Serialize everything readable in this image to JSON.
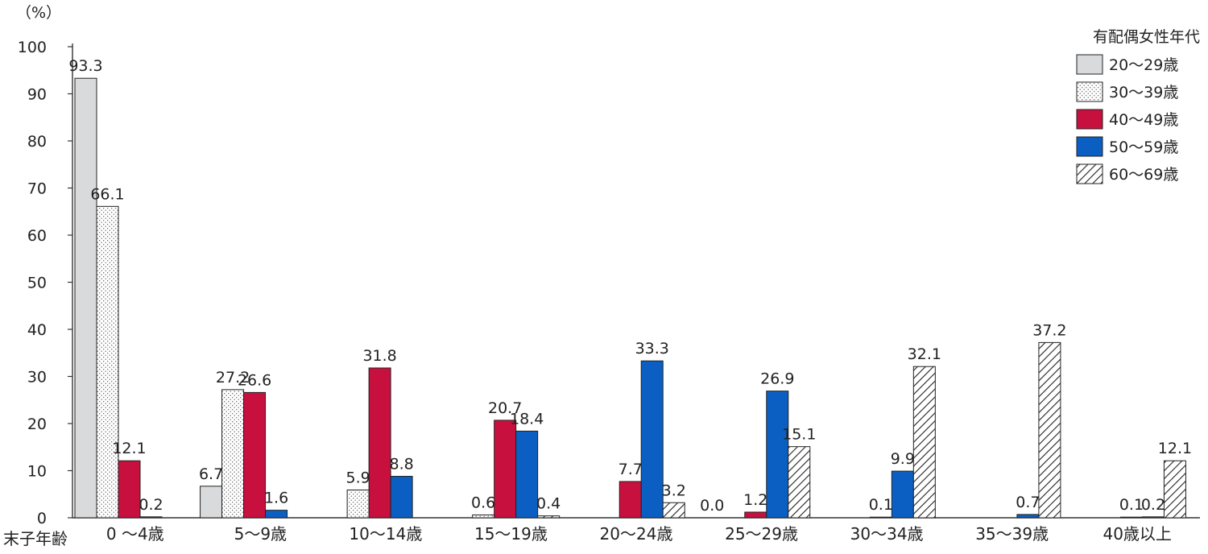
{
  "chart_data": {
    "type": "bar",
    "unit_label": "（%）",
    "xlabel": "末子年齢",
    "ylabel": "",
    "ylim": [
      0,
      100
    ],
    "yticks": [
      "0",
      "10",
      "20",
      "30",
      "40",
      "50",
      "60",
      "70",
      "80",
      "90",
      "100"
    ],
    "categories": [
      "0 〜4歳",
      "5〜9歳",
      "10〜14歳",
      "15〜19歳",
      "20〜24歳",
      "25〜29歳",
      "30〜34歳",
      "35〜39歳",
      "40歳以上"
    ],
    "legend_title": "有配偶女性年代",
    "legend_position": "top-right",
    "series": [
      {
        "name": "20〜29歳",
        "pattern": "gray",
        "color": "#d9dadb",
        "values": [
          93.3,
          6.7,
          null,
          null,
          null,
          null,
          null,
          null,
          null
        ],
        "labels": [
          "93.3",
          "6.7",
          "",
          "",
          "",
          "",
          "",
          "",
          ""
        ]
      },
      {
        "name": "30〜39歳",
        "pattern": "dots",
        "color": "#ffffff",
        "values": [
          66.1,
          27.2,
          5.9,
          0.6,
          null,
          null,
          null,
          null,
          null
        ],
        "labels": [
          "66.1",
          "27.2",
          "5.9",
          "0.6",
          "",
          "",
          "",
          "",
          ""
        ]
      },
      {
        "name": "40〜49歳",
        "pattern": "solid",
        "color": "#c8103e",
        "values": [
          12.1,
          26.6,
          31.8,
          20.7,
          7.7,
          1.2,
          0.1,
          null,
          0.1
        ],
        "labels": [
          "12.1",
          "26.6",
          "31.8",
          "20.7",
          "7.7",
          "1.2",
          "0.1",
          "",
          "0.1"
        ]
      },
      {
        "name": "50〜59歳",
        "pattern": "solid",
        "color": "#0b5fc2",
        "values": [
          0.2,
          1.6,
          8.8,
          18.4,
          33.3,
          26.9,
          9.9,
          0.7,
          0.2
        ],
        "labels": [
          "0.2",
          "1.6",
          "8.8",
          "18.4",
          "33.3",
          "26.9",
          "9.9",
          "0.7",
          "0.2"
        ]
      },
      {
        "name": "60〜69歳",
        "pattern": "hatch",
        "color": "#ffffff",
        "values": [
          null,
          null,
          null,
          0.4,
          3.2,
          15.1,
          32.1,
          37.2,
          12.1
        ],
        "labels": [
          "",
          "",
          "",
          "0.4",
          "3.2",
          "15.1",
          "32.1",
          "37.2",
          "12.1"
        ]
      }
    ],
    "extra_labels": [
      {
        "category_index": 5,
        "text": "0.0"
      }
    ]
  }
}
